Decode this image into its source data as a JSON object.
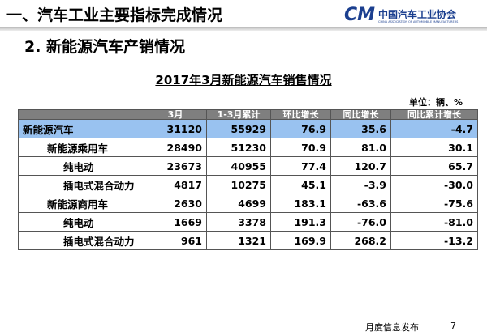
{
  "header": {
    "title": "一、汽车工业主要指标完成情况",
    "logo_mark": "CM",
    "logo_cn": "中国汽车工业协会",
    "logo_en": "CHINA ASSOCIATION OF AUTOMOBILE MANUFACTURERS"
  },
  "section_title": "2. 新能源汽车产销情况",
  "table": {
    "title": "2017年3月新能源汽车销售情况",
    "unit": "单位：辆、%",
    "columns": [
      "",
      "3月",
      "1-3月累计",
      "环比增长",
      "同比增长",
      "同比累计增长"
    ],
    "rows": [
      [
        "新能源汽车",
        "31120",
        "55929",
        "76.9",
        "35.6",
        "-4.7"
      ],
      [
        "新能源乘用车",
        "28490",
        "51230",
        "70.9",
        "81.0",
        "30.1"
      ],
      [
        "纯电动",
        "23673",
        "40955",
        "77.4",
        "120.7",
        "65.7"
      ],
      [
        "插电式混合动力",
        "4817",
        "10275",
        "45.1",
        "-3.9",
        "-30.0"
      ],
      [
        "新能源商用车",
        "2630",
        "4699",
        "183.1",
        "-63.6",
        "-75.6"
      ],
      [
        "纯电动",
        "1669",
        "3378",
        "191.3",
        "-76.0",
        "-81.0"
      ],
      [
        "插电式混合动力",
        "961",
        "1321",
        "169.9",
        "268.2",
        "-13.2"
      ]
    ]
  },
  "footer": {
    "label": "月度信息发布",
    "page": "7"
  }
}
